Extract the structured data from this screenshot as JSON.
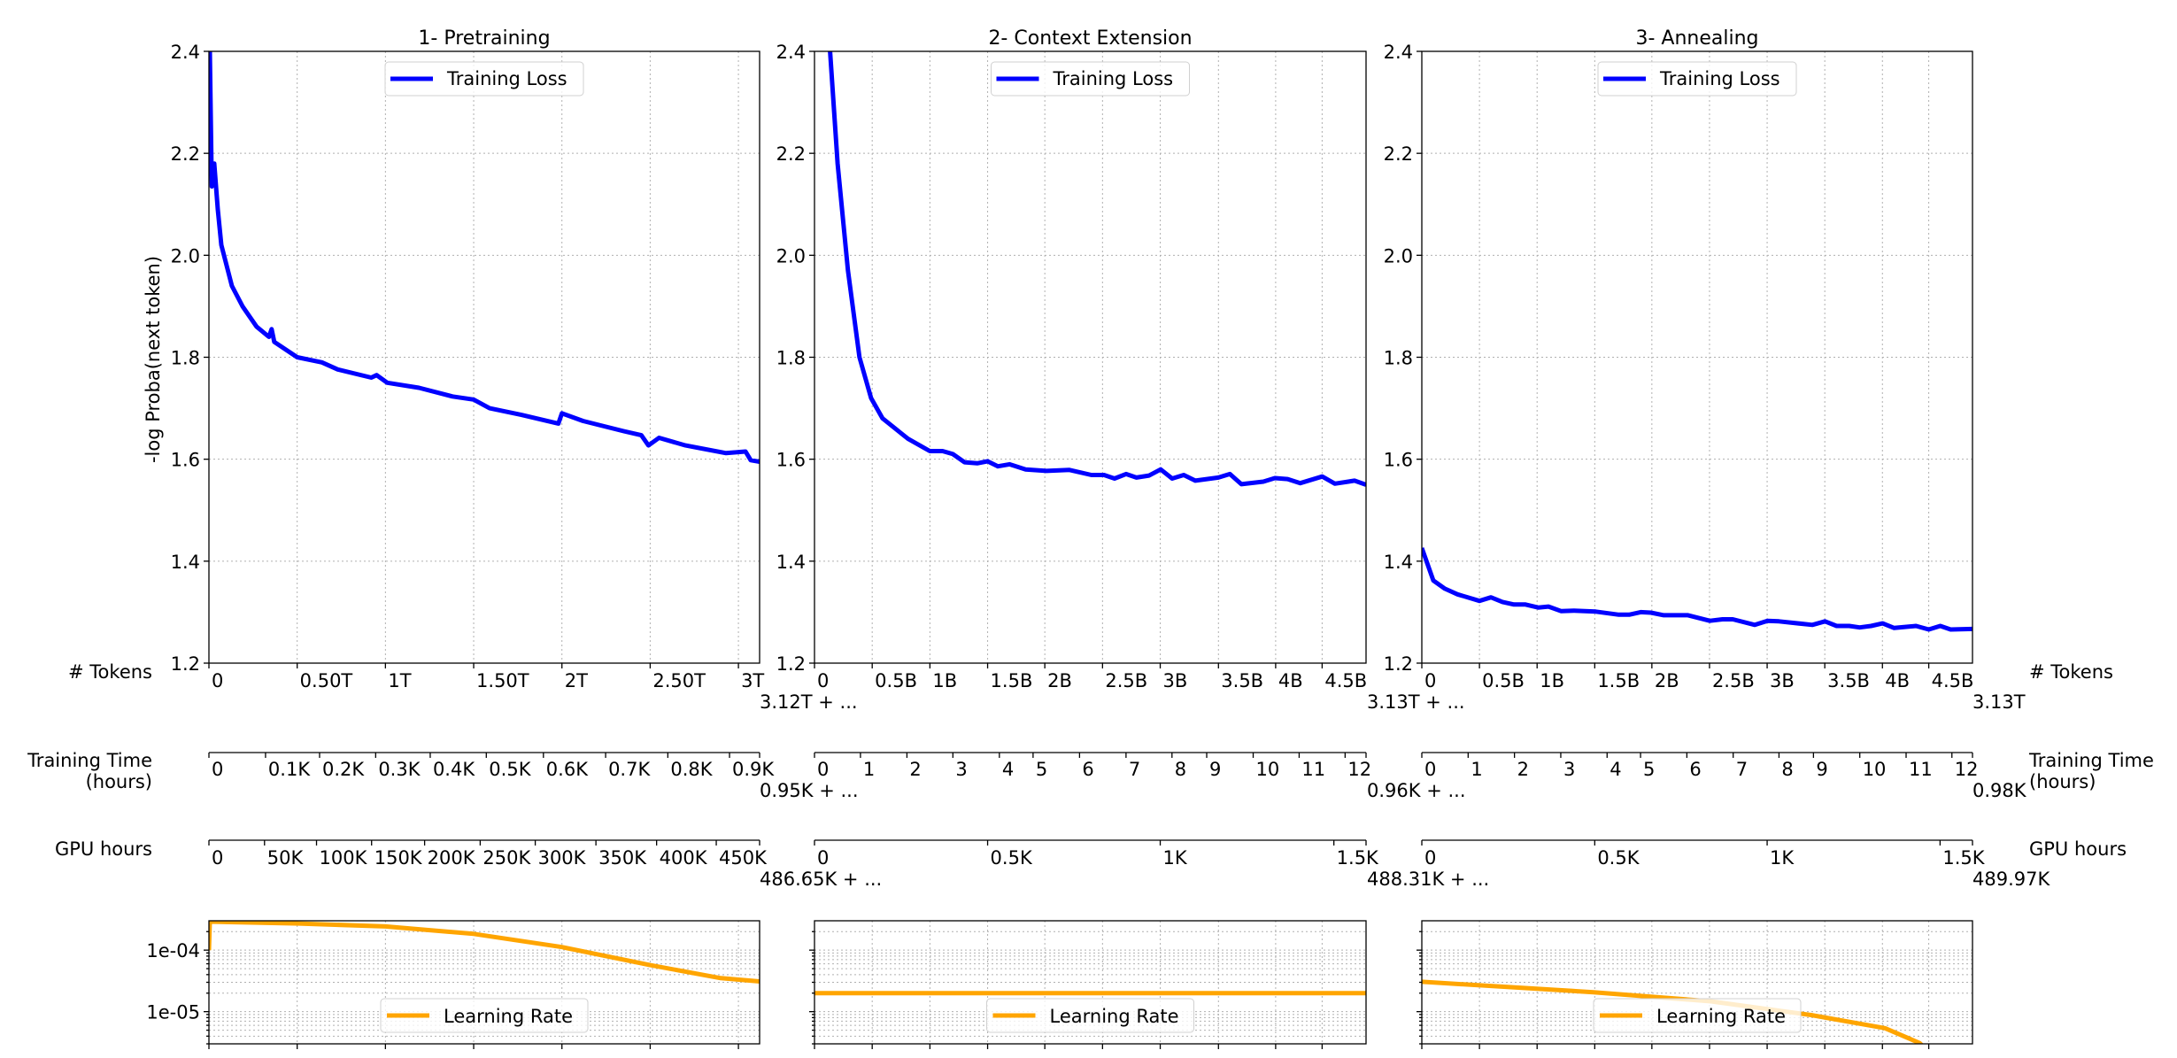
{
  "figure": {
    "ylabel": "-log Proba(next token)",
    "row_labels": {
      "tokens": "# Tokens",
      "time_line1": "Training Time",
      "time_line2": "(hours)",
      "gpu": "GPU hours"
    },
    "end_values": {
      "tokens": "3.13T",
      "time": "0.98K",
      "gpu": "489.97K"
    },
    "colors": {
      "loss": "#0000ff",
      "lr": "#ffa500"
    }
  },
  "chart_data": [
    {
      "type": "line",
      "title": "1- Pretraining",
      "ylim": [
        1.2,
        2.4
      ],
      "yticks": [
        "1.2",
        "1.4",
        "1.6",
        "1.8",
        "2.0",
        "2.2",
        "2.4"
      ],
      "x_unit": "T tokens",
      "xlim": [
        0,
        3.12
      ],
      "grid": true,
      "legend": "upper-center",
      "series": [
        {
          "name": "Training Loss",
          "color": "#0000ff",
          "x": [
            0,
            0.005,
            0.016,
            0.03,
            0.05,
            0.07,
            0.13,
            0.19,
            0.27,
            0.34,
            0.355,
            0.37,
            0.5,
            0.64,
            0.73,
            0.92,
            0.95,
            1.01,
            1.19,
            1.38,
            1.5,
            1.59,
            1.77,
            1.98,
            2.0,
            2.12,
            2.35,
            2.45,
            2.49,
            2.55,
            2.7,
            2.93,
            3.04,
            3.07,
            3.12
          ],
          "y": [
            2.6,
            2.4,
            2.135,
            2.18,
            2.09,
            2.02,
            1.94,
            1.9,
            1.86,
            1.84,
            1.855,
            1.83,
            1.8,
            1.79,
            1.776,
            1.76,
            1.765,
            1.75,
            1.74,
            1.723,
            1.717,
            1.7,
            1.687,
            1.67,
            1.69,
            1.675,
            1.655,
            1.647,
            1.627,
            1.642,
            1.627,
            1.612,
            1.615,
            1.598,
            1.595
          ]
        }
      ],
      "x_axes": {
        "tokens": {
          "ticks": [
            "0",
            "0.50T",
            "1T",
            "1.50T",
            "2T",
            "2.50T",
            "3T"
          ],
          "tick_values": [
            0,
            0.5,
            1,
            1.5,
            2,
            2.5,
            3
          ],
          "offset_text": ""
        },
        "time": {
          "ticks": [
            "0",
            "0.1K",
            "0.2K",
            "0.3K",
            "0.4K",
            "0.5K",
            "0.6K",
            "0.7K",
            "0.8K",
            "0.9K"
          ],
          "offset_text": ""
        },
        "gpu": {
          "ticks": [
            "0",
            "50K",
            "100K",
            "150K",
            "200K",
            "250K",
            "300K",
            "350K",
            "400K",
            "450K"
          ],
          "offset_text": ""
        }
      },
      "lr": {
        "type": "line",
        "yscale": "log",
        "ylim": [
          3e-06,
          0.0003
        ],
        "yticks": [
          "1e-05",
          "1e-04"
        ],
        "legend": "lower-center",
        "series": [
          {
            "name": "Learning Rate",
            "color": "#ffa500",
            "x": [
              0,
              0.005,
              0.51,
              1.0,
              1.5,
              2.0,
              2.5,
              2.9,
              3.12
            ],
            "y": [
              0.0001,
              0.00029,
              0.000271,
              0.000243,
              0.000184,
              0.000112,
              5.7e-05,
              3.5e-05,
              3.1e-05
            ]
          }
        ]
      }
    },
    {
      "type": "line",
      "title": "2- Context Extension",
      "ylim": [
        1.2,
        2.4
      ],
      "yticks": [
        "1.2",
        "1.4",
        "1.6",
        "1.8",
        "2.0",
        "2.2",
        "2.4"
      ],
      "x_unit": "B tokens",
      "xlim": [
        0,
        4.78
      ],
      "grid": true,
      "legend": "upper-center",
      "series": [
        {
          "name": "Training Loss",
          "color": "#0000ff",
          "x": [
            0,
            0.135,
            0.2,
            0.29,
            0.39,
            0.49,
            0.59,
            0.81,
            1.0,
            1.11,
            1.2,
            1.3,
            1.41,
            1.5,
            1.59,
            1.69,
            1.83,
            2.01,
            2.21,
            2.4,
            2.51,
            2.6,
            2.7,
            2.79,
            2.9,
            3.0,
            3.1,
            3.2,
            3.3,
            3.5,
            3.6,
            3.7,
            3.89,
            3.99,
            4.1,
            4.21,
            4.4,
            4.51,
            4.68,
            4.78
          ],
          "y": [
            2.9,
            2.4,
            2.18,
            1.97,
            1.8,
            1.72,
            1.68,
            1.64,
            1.616,
            1.616,
            1.61,
            1.594,
            1.592,
            1.596,
            1.586,
            1.59,
            1.58,
            1.577,
            1.579,
            1.569,
            1.569,
            1.562,
            1.571,
            1.564,
            1.568,
            1.58,
            1.562,
            1.569,
            1.558,
            1.564,
            1.571,
            1.551,
            1.556,
            1.563,
            1.561,
            1.553,
            1.566,
            1.552,
            1.558,
            1.55
          ]
        }
      ],
      "x_axes": {
        "tokens": {
          "ticks": [
            "0",
            "0.5B",
            "1B",
            "1.5B",
            "2B",
            "2.5B",
            "3B",
            "3.5B",
            "4B",
            "4.5B"
          ],
          "offset_text": "3.12T + ..."
        },
        "time": {
          "ticks": [
            "0",
            "1",
            "2",
            "3",
            "4",
            "5",
            "6",
            "7",
            "8",
            "9",
            "10",
            "11",
            "12"
          ],
          "offset_text": "0.95K + ..."
        },
        "gpu": {
          "ticks": [
            "0",
            "0.5K",
            "1K",
            "1.5K"
          ],
          "offset_text": "486.65K + ..."
        }
      },
      "lr": {
        "type": "line",
        "yscale": "log",
        "ylim": [
          3e-06,
          0.0003
        ],
        "yticks": [],
        "legend": "lower-center",
        "series": [
          {
            "name": "Learning Rate",
            "color": "#ffa500",
            "x": [
              0,
              4.78
            ],
            "y": [
              2e-05,
              2e-05
            ]
          }
        ]
      }
    },
    {
      "type": "line",
      "title": "3- Annealing",
      "ylim": [
        1.2,
        2.4
      ],
      "yticks": [
        "1.2",
        "1.4",
        "1.6",
        "1.8",
        "2.0",
        "2.2",
        "2.4"
      ],
      "x_unit": "B tokens",
      "xlim": [
        0,
        4.78
      ],
      "grid": true,
      "legend": "upper-center",
      "series": [
        {
          "name": "Training Loss",
          "color": "#0000ff",
          "x": [
            0,
            0.1,
            0.2,
            0.31,
            0.5,
            0.6,
            0.7,
            0.8,
            0.9,
            1.01,
            1.1,
            1.21,
            1.32,
            1.51,
            1.71,
            1.8,
            1.9,
            1.99,
            2.1,
            2.31,
            2.5,
            2.61,
            2.7,
            2.89,
            3.0,
            3.1,
            3.39,
            3.5,
            3.6,
            3.71,
            3.8,
            3.9,
            4.0,
            4.1,
            4.29,
            4.4,
            4.5,
            4.59,
            4.78
          ],
          "y": [
            1.426,
            1.362,
            1.346,
            1.335,
            1.322,
            1.329,
            1.32,
            1.315,
            1.315,
            1.309,
            1.311,
            1.302,
            1.303,
            1.301,
            1.295,
            1.295,
            1.3,
            1.299,
            1.294,
            1.294,
            1.283,
            1.286,
            1.286,
            1.275,
            1.283,
            1.282,
            1.275,
            1.282,
            1.273,
            1.273,
            1.27,
            1.273,
            1.278,
            1.269,
            1.273,
            1.266,
            1.273,
            1.266,
            1.267
          ]
        }
      ],
      "x_axes": {
        "tokens": {
          "ticks": [
            "0",
            "0.5B",
            "1B",
            "1.5B",
            "2B",
            "2.5B",
            "3B",
            "3.5B",
            "4B",
            "4.5B"
          ],
          "offset_text": "3.13T + ..."
        },
        "time": {
          "ticks": [
            "0",
            "1",
            "2",
            "3",
            "4",
            "5",
            "6",
            "7",
            "8",
            "9",
            "10",
            "11",
            "12"
          ],
          "offset_text": "0.96K + ..."
        },
        "gpu": {
          "ticks": [
            "0",
            "0.5K",
            "1K",
            "1.5K"
          ],
          "offset_text": "488.31K + ..."
        }
      },
      "lr": {
        "type": "line",
        "yscale": "log",
        "ylim": [
          3e-06,
          0.0003
        ],
        "yticks": [],
        "legend": "lower-center",
        "series": [
          {
            "name": "Learning Rate",
            "color": "#ffa500",
            "x": [
              0,
              1.49,
              2.51,
              3.38,
              4.02,
              4.32,
              4.5
            ],
            "y": [
              3.06e-05,
              2.07e-05,
              1.47e-05,
              8.8e-06,
              5.4e-06,
              3.1e-06,
              1.5e-06
            ]
          }
        ]
      }
    }
  ]
}
